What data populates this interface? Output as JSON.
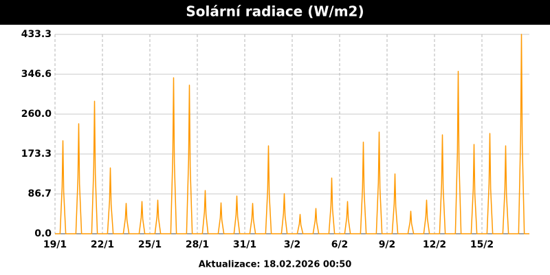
{
  "chart_data": {
    "type": "line",
    "title": "Solární radiace (W/m2)",
    "footer": "Aktualizace: 18.02.2026 00:50",
    "color": "#ff9900",
    "grid": true,
    "xlim": [
      0,
      30
    ],
    "ylim": [
      0,
      433.3
    ],
    "xticks": [
      {
        "value": 0,
        "label": "19/1"
      },
      {
        "value": 3,
        "label": "22/1"
      },
      {
        "value": 6,
        "label": "25/1"
      },
      {
        "value": 9,
        "label": "28/1"
      },
      {
        "value": 12,
        "label": "31/1"
      },
      {
        "value": 15,
        "label": "3/2"
      },
      {
        "value": 18,
        "label": "6/2"
      },
      {
        "value": 21,
        "label": "9/2"
      },
      {
        "value": 24,
        "label": "12/2"
      },
      {
        "value": 27,
        "label": "15/2"
      }
    ],
    "yticks": [
      {
        "value": 0,
        "label": "0.0"
      },
      86.7,
      173.3,
      {
        "value": 260,
        "label": "260.0"
      },
      346.6,
      433.3
    ],
    "x": [
      0,
      0.32,
      0.45,
      0.5,
      0.55,
      0.68,
      1.32,
      1.45,
      1.5,
      1.55,
      1.68,
      2.32,
      2.45,
      2.5,
      2.55,
      2.68,
      3.32,
      3.45,
      3.5,
      3.55,
      3.68,
      4.32,
      4.45,
      4.5,
      4.55,
      4.68,
      5.32,
      5.45,
      5.5,
      5.55,
      5.68,
      6.32,
      6.45,
      6.5,
      6.55,
      6.68,
      7.32,
      7.45,
      7.5,
      7.55,
      7.68,
      8.32,
      8.45,
      8.5,
      8.55,
      8.68,
      9.32,
      9.45,
      9.5,
      9.55,
      9.68,
      10.32,
      10.45,
      10.5,
      10.55,
      10.68,
      11.32,
      11.45,
      11.5,
      11.55,
      11.68,
      12.32,
      12.45,
      12.5,
      12.55,
      12.68,
      13.32,
      13.45,
      13.5,
      13.55,
      13.68,
      14.32,
      14.45,
      14.5,
      14.55,
      14.68,
      15.32,
      15.45,
      15.5,
      15.55,
      15.68,
      16.32,
      16.45,
      16.5,
      16.55,
      16.68,
      17.32,
      17.45,
      17.5,
      17.55,
      17.68,
      18.32,
      18.45,
      18.5,
      18.55,
      18.68,
      19.32,
      19.45,
      19.5,
      19.55,
      19.68,
      20.32,
      20.45,
      20.5,
      20.55,
      20.68,
      21.32,
      21.45,
      21.5,
      21.55,
      21.68,
      22.32,
      22.45,
      22.5,
      22.55,
      22.68,
      23.32,
      23.45,
      23.5,
      23.55,
      23.68,
      24.32,
      24.45,
      24.5,
      24.55,
      24.68,
      25.32,
      25.45,
      25.5,
      25.55,
      25.68,
      26.32,
      26.45,
      26.5,
      26.55,
      26.68,
      27.32,
      27.45,
      27.5,
      27.55,
      27.68,
      28.32,
      28.45,
      28.5,
      28.55,
      28.68,
      29.32,
      29.45,
      29.5,
      29.55,
      29.68,
      30
    ],
    "values": [
      0,
      0,
      101,
      202,
      91,
      0,
      0,
      120,
      239,
      108,
      0,
      0,
      144,
      288,
      130,
      0,
      0,
      72,
      143,
      64,
      0,
      0,
      33,
      66,
      30,
      0,
      0,
      35,
      70,
      32,
      0,
      0,
      37,
      73,
      33,
      0,
      0,
      170,
      339,
      153,
      0,
      0,
      162,
      323,
      145,
      0,
      0,
      47,
      94,
      42,
      0,
      0,
      34,
      67,
      30,
      0,
      0,
      41,
      82,
      37,
      0,
      0,
      33,
      66,
      30,
      0,
      0,
      96,
      191,
      86,
      0,
      0,
      44,
      87,
      39,
      0,
      0,
      21,
      42,
      19,
      0,
      0,
      28,
      55,
      25,
      0,
      0,
      61,
      121,
      54,
      0,
      0,
      35,
      70,
      32,
      0,
      0,
      100,
      199,
      90,
      0,
      0,
      111,
      221,
      99,
      0,
      0,
      65,
      130,
      59,
      0,
      0,
      25,
      49,
      22,
      0,
      0,
      37,
      73,
      33,
      0,
      0,
      108,
      215,
      97,
      0,
      0,
      177,
      353,
      159,
      0,
      0,
      97,
      194,
      87,
      0,
      0,
      109,
      218,
      98,
      0,
      0,
      96,
      191,
      86,
      0,
      0,
      217,
      433.3,
      195,
      0,
      0
    ]
  }
}
